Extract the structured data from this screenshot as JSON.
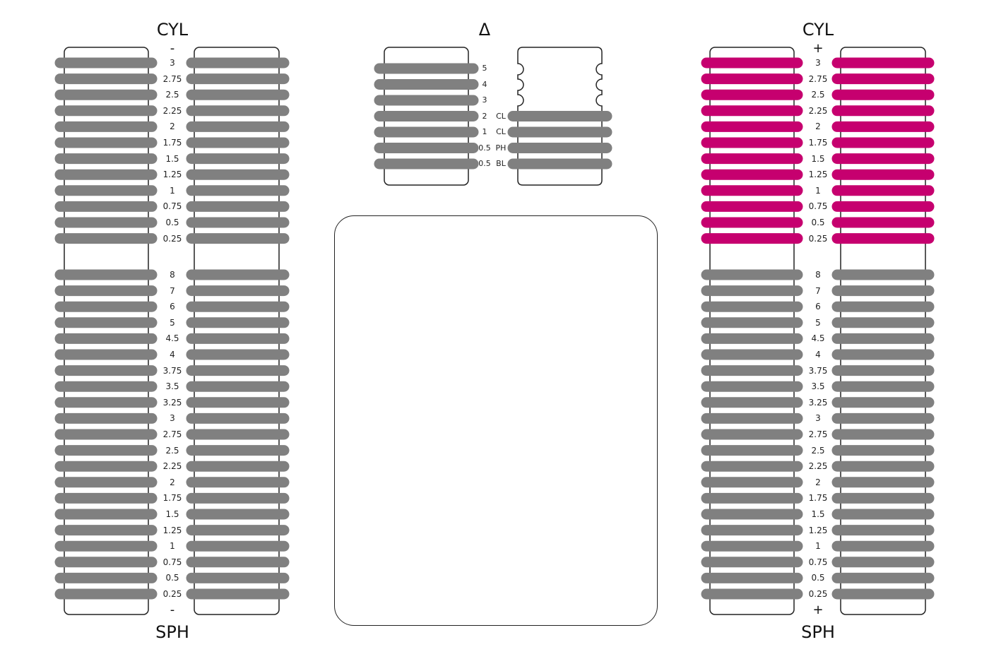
{
  "colors": {
    "bar": "#808080",
    "accent": "#c6006f",
    "outline": "#222222"
  },
  "left_rack": {
    "cyl_title": "CYL",
    "sph_title": "SPH",
    "cyl_sign": "-",
    "sph_sign": "-",
    "cyl_values": [
      "3",
      "2.75",
      "2.5",
      "2.25",
      "2",
      "1.75",
      "1.5",
      "1.25",
      "1",
      "0.75",
      "0.5",
      "0.25"
    ],
    "sph_values": [
      "8",
      "7",
      "6",
      "5",
      "4.5",
      "4",
      "3.75",
      "3.5",
      "3.25",
      "3",
      "2.75",
      "2.5",
      "2.25",
      "2",
      "1.75",
      "1.5",
      "1.25",
      "1",
      "0.75",
      "0.5",
      "0.25"
    ],
    "cyl_highlight": false
  },
  "right_rack": {
    "cyl_title": "CYL",
    "sph_title": "SPH",
    "cyl_sign": "+",
    "sph_sign": "+",
    "cyl_values": [
      "3",
      "2.75",
      "2.5",
      "2.25",
      "2",
      "1.75",
      "1.5",
      "1.25",
      "1",
      "0.75",
      "0.5",
      "0.25"
    ],
    "sph_values": [
      "8",
      "7",
      "6",
      "5",
      "4.5",
      "4",
      "3.75",
      "3.5",
      "3.25",
      "3",
      "2.75",
      "2.5",
      "2.25",
      "2",
      "1.75",
      "1.5",
      "1.25",
      "1",
      "0.75",
      "0.5",
      "0.25"
    ],
    "cyl_highlight": true
  },
  "prism": {
    "title": "Δ",
    "values": [
      "5",
      "4",
      "3",
      "2",
      "1",
      "0.5",
      "0.5"
    ],
    "accessory_labels": [
      "CL",
      "CL",
      "PH",
      "BL"
    ]
  }
}
